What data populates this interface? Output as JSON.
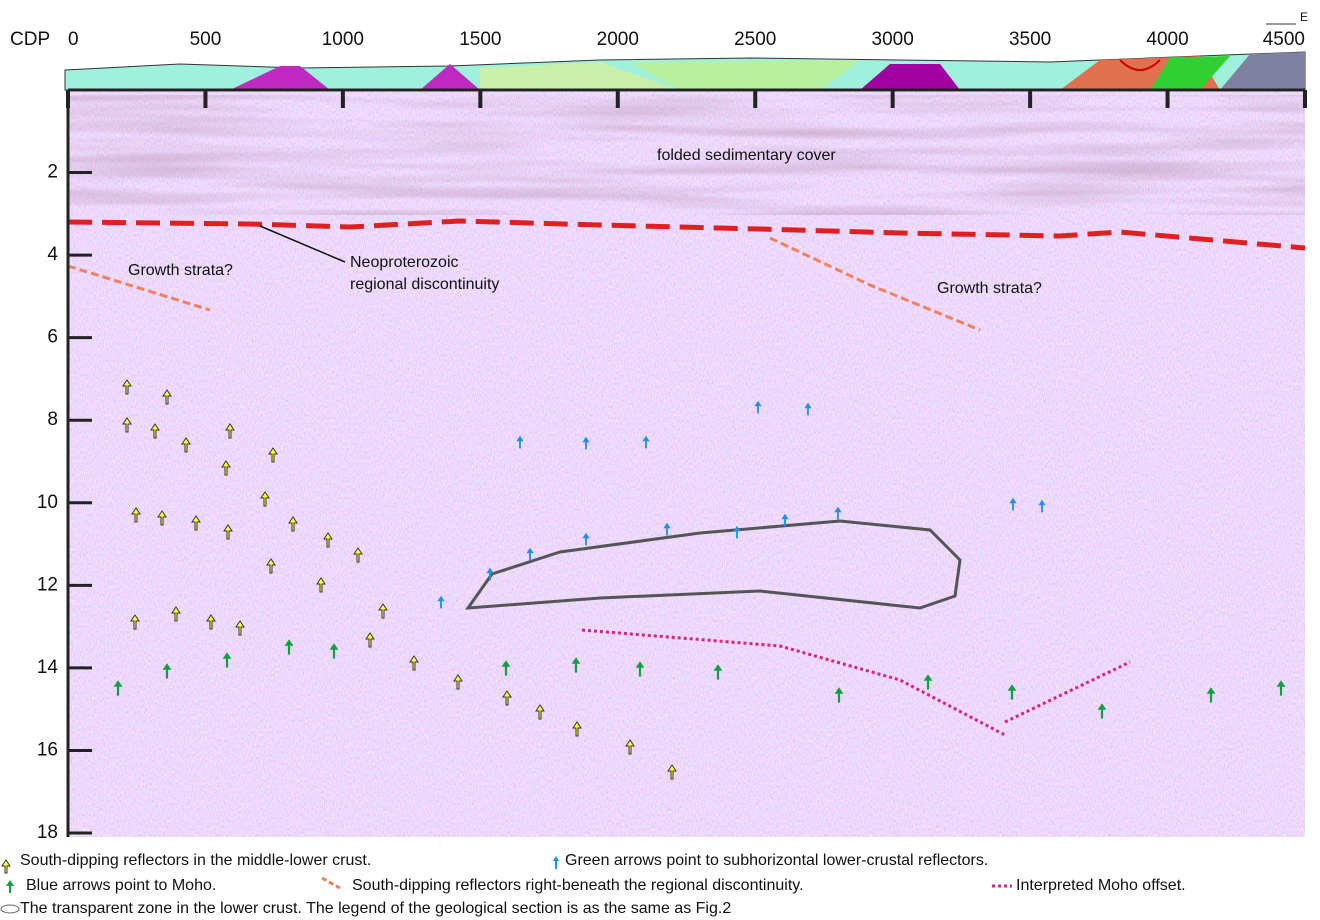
{
  "chart_data": {
    "type": "seismic-section",
    "x_label": "CDP",
    "direction": "E",
    "xlim": [
      0,
      4500
    ],
    "xticks": [
      0,
      500,
      1000,
      1500,
      2000,
      2500,
      3000,
      3500,
      4000,
      4500
    ],
    "ylim": [
      0,
      18
    ],
    "yticks": [
      2,
      4,
      6,
      8,
      10,
      12,
      14,
      16,
      18
    ],
    "annotations": [
      "folded sedimentary cover",
      "Neoproterozoic",
      "regional discontinuity",
      "Growth strata?",
      "Growth strata?"
    ],
    "legend": [
      "South-dipping reflectors in the middle-lower crust.",
      "Green arrows point to subhorizontal  lower-crustal reflectors.",
      "Blue arrows point to Moho.",
      "South-dipping reflectors right-beneath the regional discontinuity.",
      "Interpreted Moho offset.",
      "The transparent zone in the lower crust.  The legend of the geological section is as the same as Fig.2"
    ]
  }
}
